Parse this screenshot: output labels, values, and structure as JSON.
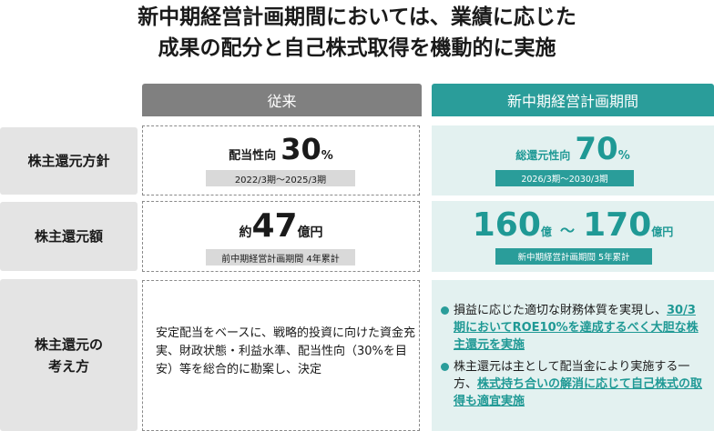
{
  "title": {
    "line1": "新中期経営計画期間においては、業績に応じた",
    "line2": "成果の配分と自己株式取得を機動的に実施"
  },
  "columns": {
    "old": "従来",
    "new": "新中期経営計画期間"
  },
  "rows": {
    "policy": {
      "label": "株主還元方針",
      "old": {
        "prefix": "配当性向",
        "value": "30",
        "unit": "%",
        "period": "2022/3期～2025/3期"
      },
      "new": {
        "prefix": "総還元性向",
        "value": "70",
        "unit": "%",
        "period": "2026/3期～2030/3期"
      }
    },
    "amount": {
      "label": "株主還元額",
      "old": {
        "prefix": "約",
        "value": "47",
        "unit": "億円",
        "note": "前中期経営計画期間 4年累計"
      },
      "new": {
        "value_low": "160",
        "unit_low": "億",
        "tilde": "～",
        "value_high": "170",
        "unit_high": "億円",
        "note": "新中期経営計画期間 5年累計"
      }
    },
    "approach": {
      "label_line1": "株主還元の",
      "label_line2": "考え方",
      "old_text": "安定配当をベースに、戦略的投資に向けた資金充実、財政状態・利益水準、配当性向（30%を目安）等を総合的に勘案し、決定",
      "bullet1_plain": "損益に応じた適切な財務体質を実現し、",
      "bullet1_emph": "30/3期においてROE10%を達成するべく大胆な株主還元を実施",
      "bullet2_plain": "株主還元は主として配当金により実施する一方、",
      "bullet2_emph": "株式持ち合いの解消に応じて自己株式の取得も適宜実施"
    }
  },
  "colors": {
    "teal": "#2a9d9a",
    "teal_text": "#1f9995",
    "grey_header": "#808080",
    "label_bg": "#e4e4e4",
    "teal_bg": "#e3f1f0"
  }
}
